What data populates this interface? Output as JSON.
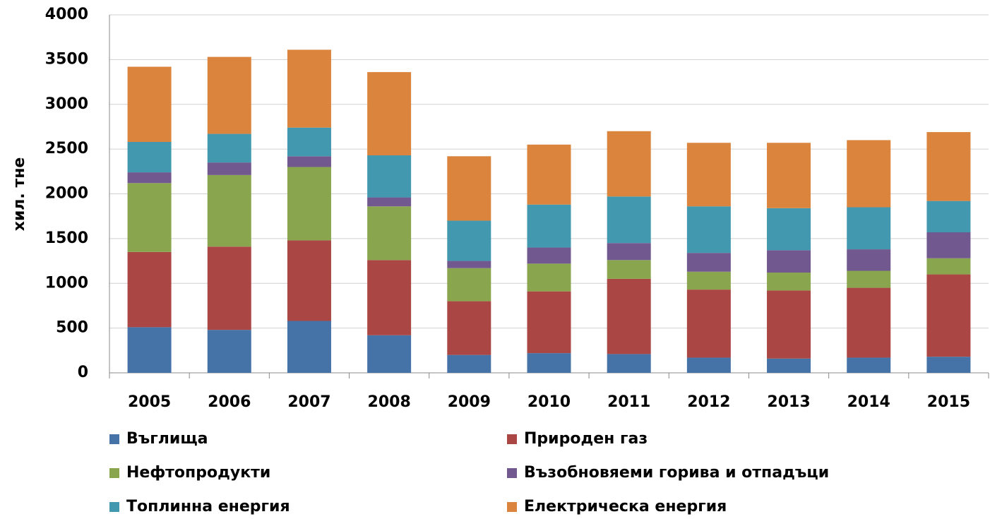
{
  "chart_data": {
    "type": "stacked_bar",
    "y_label": "хил. тне",
    "categories": [
      "2005",
      "2006",
      "2007",
      "2008",
      "2009",
      "2010",
      "2011",
      "2012",
      "2013",
      "2014",
      "2015"
    ],
    "series": [
      {
        "name": "Въглища",
        "color": "#4572a7",
        "values": [
          510,
          480,
          580,
          420,
          200,
          220,
          210,
          170,
          160,
          170,
          180
        ]
      },
      {
        "name": "Природен газ",
        "color": "#aa4643",
        "values": [
          840,
          930,
          900,
          840,
          600,
          690,
          840,
          760,
          760,
          780,
          920
        ]
      },
      {
        "name": "Нефтопродукти",
        "color": "#89a54e",
        "values": [
          770,
          800,
          820,
          600,
          370,
          310,
          210,
          200,
          200,
          190,
          180
        ]
      },
      {
        "name": "Възобновяеми горива и отпадъци",
        "color": "#71588f",
        "values": [
          120,
          140,
          120,
          100,
          80,
          180,
          190,
          210,
          250,
          240,
          290
        ]
      },
      {
        "name": "Топлинна енергия",
        "color": "#4198af",
        "values": [
          340,
          320,
          320,
          470,
          450,
          480,
          520,
          520,
          470,
          470,
          350
        ]
      },
      {
        "name": "Електрическа енергия",
        "color": "#db843d",
        "values": [
          840,
          860,
          870,
          930,
          720,
          670,
          730,
          710,
          730,
          750,
          770
        ]
      }
    ],
    "ylim": [
      0,
      4000
    ],
    "yticks": [
      0,
      500,
      1000,
      1500,
      2000,
      2500,
      3000,
      3500,
      4000
    ],
    "grid": true,
    "legend": "bottom"
  }
}
